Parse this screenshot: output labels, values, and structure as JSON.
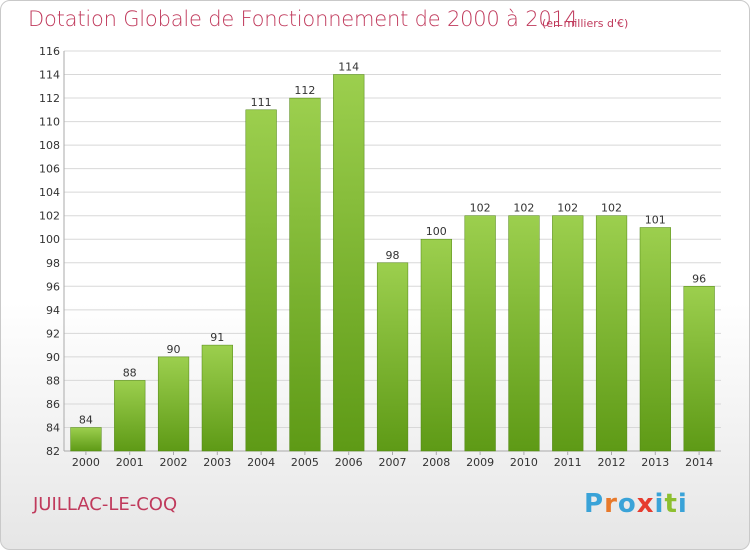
{
  "header": {
    "title": "Dotation Globale de Fonctionnement de 2000 à 2014",
    "subtitle": "(en milliers d'€)"
  },
  "footer": {
    "commune": "JUILLAC-LE-COQ",
    "logo": [
      "P",
      "r",
      "o",
      "x",
      "i",
      "t",
      "i"
    ],
    "logo_colors": [
      "#3aa3d8",
      "#e8792a",
      "#3aa3d8",
      "#e63c2f",
      "#3aa3d8",
      "#8dbf2f",
      "#3aa3d8"
    ]
  },
  "colors": {
    "accent": "#c03a5c",
    "bar_top": "#9ccf4e",
    "bar_bottom": "#5e9a16",
    "grid": "#d8d8d8"
  },
  "chart_data": {
    "type": "bar",
    "categories": [
      "2000",
      "2001",
      "2002",
      "2003",
      "2004",
      "2005",
      "2006",
      "2007",
      "2008",
      "2009",
      "2010",
      "2011",
      "2012",
      "2013",
      "2014"
    ],
    "values": [
      84,
      88,
      90,
      91,
      111,
      112,
      114,
      98,
      100,
      102,
      102,
      102,
      102,
      101,
      96
    ],
    "title": "Dotation Globale de Fonctionnement de 2000 à 2014",
    "subtitle": "(en milliers d'€)",
    "xlabel": "",
    "ylabel": "",
    "ylim": [
      82,
      116
    ],
    "yticks": [
      82,
      84,
      86,
      88,
      90,
      92,
      94,
      96,
      98,
      100,
      102,
      104,
      106,
      108,
      110,
      112,
      114,
      116
    ],
    "grid": true,
    "legend": "none"
  }
}
